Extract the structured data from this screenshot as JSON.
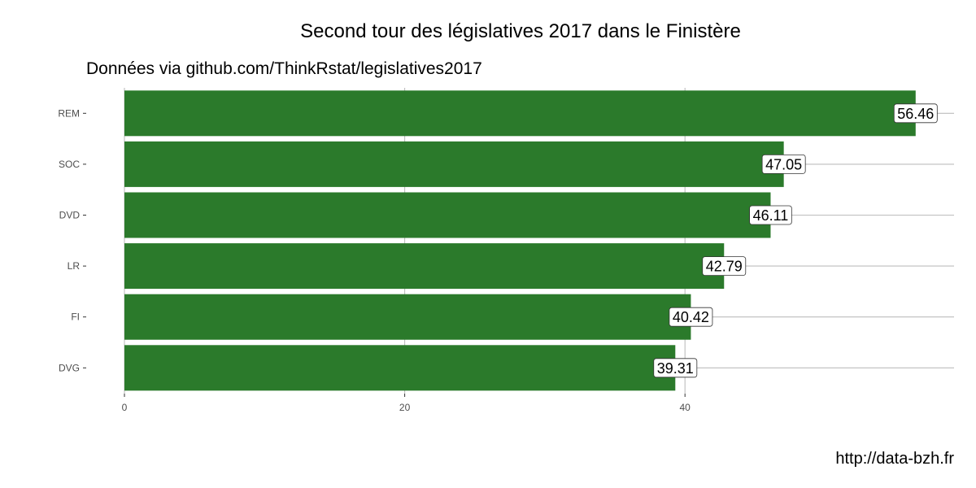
{
  "chart_data": {
    "type": "bar",
    "orientation": "horizontal",
    "title": "Second tour des législatives 2017 dans le Finistère",
    "subtitle": "Données via github.com/ThinkRstat/legislatives2017",
    "caption": "http://data-bzh.fr",
    "xlabel": "",
    "ylabel": "",
    "categories": [
      "REM",
      "SOC",
      "DVD",
      "LR",
      "FI",
      "DVG"
    ],
    "values": [
      56.46,
      47.05,
      46.11,
      42.79,
      40.42,
      39.31
    ],
    "data_labels": [
      "56.46",
      "47.05",
      "46.11",
      "42.79",
      "40.42",
      "39.31"
    ],
    "xlim": [
      0,
      59.2
    ],
    "x_ticks": [
      0,
      20,
      40
    ],
    "x_tick_labels": [
      "0",
      "20",
      "40"
    ],
    "bar_color": "#2b7a2b",
    "grid": true
  }
}
